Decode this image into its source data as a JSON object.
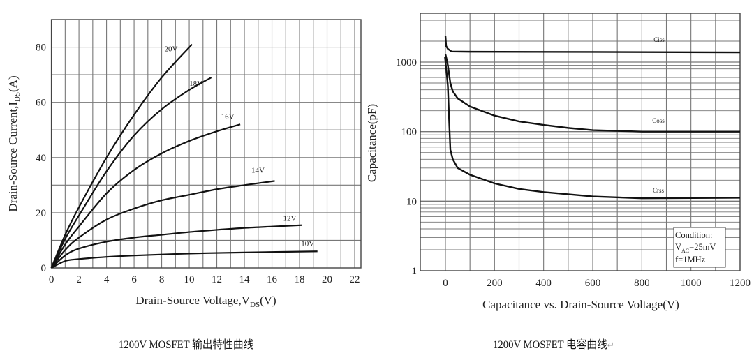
{
  "chart_data": [
    {
      "type": "line",
      "xlabel": "Drain-Source Voltage,V",
      "xlabel_sub": "DS",
      "xlabel_suffix": "(V)",
      "ylabel": "Drain-Source Current,I",
      "ylabel_sub": "DS",
      "ylabel_suffix": "(A)",
      "xlim": [
        0,
        22.4
      ],
      "ylim": [
        0,
        90
      ],
      "xticks": [
        0,
        2,
        4,
        6,
        8,
        10,
        12,
        14,
        16,
        18,
        20,
        22
      ],
      "yticks": [
        0,
        20,
        40,
        60,
        80
      ],
      "grid": true,
      "grid_x_step": 1,
      "grid_y_step": 10,
      "series": [
        {
          "name": "20V",
          "x": [
            0,
            1,
            2,
            4,
            6,
            8,
            10.2
          ],
          "y": [
            0,
            12,
            22,
            40,
            55.5,
            69,
            81
          ]
        },
        {
          "name": "18V",
          "x": [
            0,
            1,
            2,
            4,
            6,
            8,
            10,
            11.6
          ],
          "y": [
            0,
            10.5,
            19,
            35,
            48,
            57.5,
            64.5,
            69
          ]
        },
        {
          "name": "16V",
          "x": [
            0,
            1,
            2,
            4,
            6,
            8,
            10,
            12,
            13.7
          ],
          "y": [
            0,
            8.5,
            15,
            27,
            35.5,
            41.5,
            46,
            49.5,
            52
          ]
        },
        {
          "name": "14V",
          "x": [
            0,
            1,
            2,
            4,
            6,
            8,
            10,
            12,
            14,
            16.2
          ],
          "y": [
            0,
            6.5,
            11,
            17.5,
            21.5,
            24.5,
            26.5,
            28.5,
            30,
            31.5
          ]
        },
        {
          "name": "12V",
          "x": [
            0,
            1,
            2,
            4,
            6,
            8,
            10,
            12,
            14,
            16,
            18.2
          ],
          "y": [
            0,
            4.5,
            7,
            9.5,
            11,
            12,
            13,
            13.8,
            14.5,
            15,
            15.5
          ]
        },
        {
          "name": "10V",
          "x": [
            0,
            1,
            2,
            4,
            6,
            10,
            14,
            19.3
          ],
          "y": [
            0,
            2.5,
            3.2,
            4,
            4.5,
            5.2,
            5.6,
            6
          ]
        }
      ]
    },
    {
      "type": "line",
      "xlabel": "Capacitance vs. Drain-Source Voltage(V)",
      "ylabel": "Capacitance(pF)",
      "xlim": [
        -100,
        1200
      ],
      "ylim": [
        1,
        5000
      ],
      "yscale": "log",
      "xticks": [
        0,
        200,
        400,
        600,
        800,
        1000,
        1200
      ],
      "yticks": [
        1,
        10,
        100,
        1000
      ],
      "grid": true,
      "grid_x_step": 100,
      "series": [
        {
          "name": "Ciss",
          "x": [
            0,
            3,
            10,
            25,
            100,
            600,
            1200
          ],
          "y": [
            2400,
            1700,
            1550,
            1420,
            1410,
            1400,
            1380
          ]
        },
        {
          "name": "Coss",
          "x": [
            0,
            5,
            10,
            20,
            30,
            50,
            100,
            200,
            300,
            400,
            500,
            600,
            800,
            1200
          ],
          "y": [
            1300,
            1100,
            900,
            500,
            380,
            300,
            230,
            170,
            140,
            125,
            113,
            105,
            100,
            100
          ]
        },
        {
          "name": "Crss",
          "x": [
            -2,
            5,
            10,
            15,
            20,
            30,
            50,
            100,
            200,
            300,
            400,
            600,
            800,
            1200
          ],
          "y": [
            1200,
            700,
            450,
            150,
            55,
            40,
            30,
            24,
            18,
            15,
            13.5,
            11.7,
            11,
            11.2
          ]
        }
      ],
      "annotation": {
        "line1": "Condition:",
        "line2_main": "V",
        "line2_sub": "AC",
        "line2_suffix": "=25mV",
        "line3": "f=1MHz"
      }
    }
  ],
  "captions": {
    "left": "1200V MOSFET 输出特性曲线",
    "right": "1200V MOSFET 电容曲线",
    "right_mark": "↵"
  },
  "colors": {
    "curve": "#111111",
    "grid": "#777777",
    "text": "#222222"
  }
}
